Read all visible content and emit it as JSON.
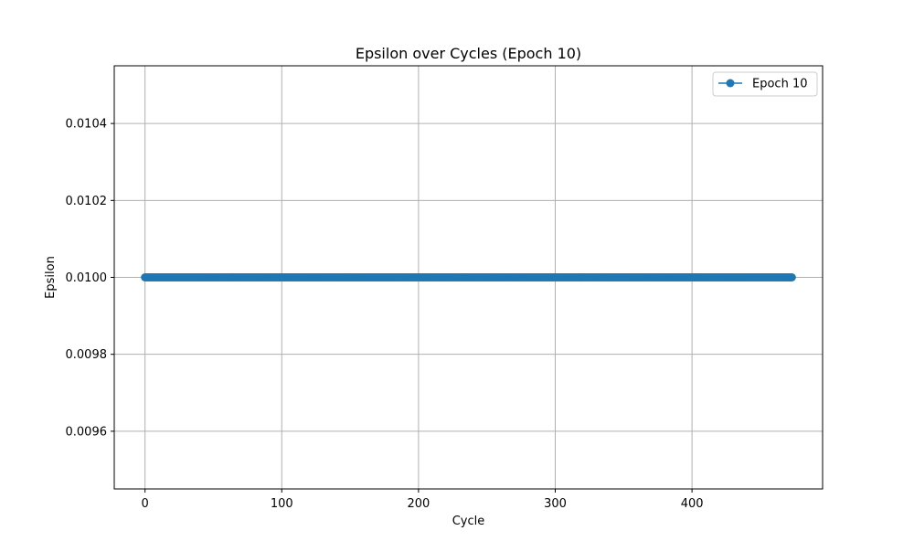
{
  "chart_data": {
    "type": "line",
    "title": "Epsilon over Cycles (Epoch 10)",
    "xlabel": "Cycle",
    "ylabel": "Epsilon",
    "xlim": [
      -22.5,
      495.5
    ],
    "ylim": [
      0.00945,
      0.01055
    ],
    "xticks": [
      0,
      100,
      200,
      300,
      400
    ],
    "xtick_labels": [
      "0",
      "100",
      "200",
      "300",
      "400"
    ],
    "yticks": [
      0.0096,
      0.0098,
      0.01,
      0.0102,
      0.0104
    ],
    "ytick_labels": [
      "0.0096",
      "0.0098",
      "0.0100",
      "0.0102",
      "0.0104"
    ],
    "grid": true,
    "legend": "top-right",
    "series": [
      {
        "name": "Epoch 10",
        "color": "#1f77b4",
        "marker": "circle",
        "x_start": 0,
        "x_end": 473,
        "x_step": 1,
        "y_constant": 0.01
      }
    ]
  }
}
